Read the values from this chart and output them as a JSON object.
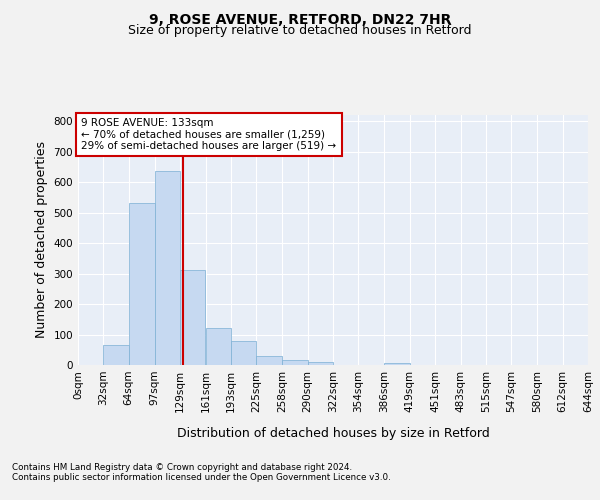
{
  "title_line1": "9, ROSE AVENUE, RETFORD, DN22 7HR",
  "title_line2": "Size of property relative to detached houses in Retford",
  "xlabel": "Distribution of detached houses by size in Retford",
  "ylabel": "Number of detached properties",
  "footnote1": "Contains HM Land Registry data © Crown copyright and database right 2024.",
  "footnote2": "Contains public sector information licensed under the Open Government Licence v3.0.",
  "bin_edges": [
    0,
    32,
    64,
    97,
    129,
    161,
    193,
    225,
    258,
    290,
    322,
    354,
    386,
    419,
    451,
    483,
    515,
    547,
    580,
    612,
    644
  ],
  "bar_heights": [
    0,
    65,
    530,
    635,
    310,
    120,
    78,
    30,
    15,
    10,
    0,
    0,
    5,
    0,
    0,
    0,
    0,
    0,
    0,
    0
  ],
  "bar_color": "#c6d9f1",
  "bar_edgecolor": "#7bafd4",
  "property_size": 133,
  "red_line_color": "#cc0000",
  "annotation_line1": "9 ROSE AVENUE: 133sqm",
  "annotation_line2": "← 70% of detached houses are smaller (1,259)",
  "annotation_line3": "29% of semi-detached houses are larger (519) →",
  "annotation_box_edgecolor": "#cc0000",
  "annotation_box_facecolor": "#ffffff",
  "ylim_max": 820,
  "yticks": [
    0,
    100,
    200,
    300,
    400,
    500,
    600,
    700,
    800
  ],
  "plot_bg_color": "#e8eef7",
  "fig_bg_color": "#f2f2f2",
  "grid_color": "#ffffff",
  "tick_label_fontsize": 7.5,
  "axis_label_fontsize": 9,
  "title1_fontsize": 10,
  "title2_fontsize": 9
}
